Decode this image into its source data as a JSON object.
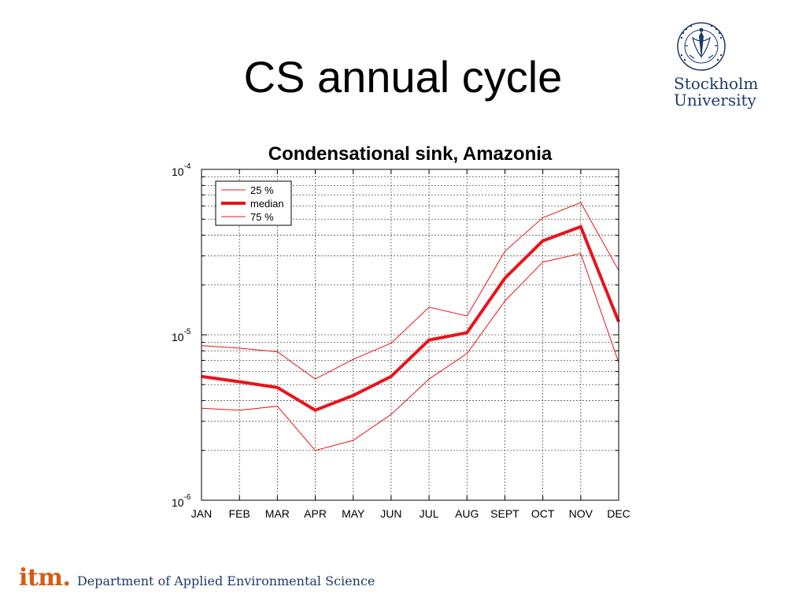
{
  "slide": {
    "title": "CS annual cycle"
  },
  "logo": {
    "line1": "Stockholm",
    "line2": "University",
    "seal_text": "UNIVERSITET STOCKHOLMS",
    "seal_icon": "university-seal-icon"
  },
  "footer": {
    "brand": "itm",
    "department": "Department of Applied Environmental Science"
  },
  "colors": {
    "series": "#e8141a",
    "logo_blue": "#1e3a6b",
    "brand_orange": "#d65b10"
  },
  "chart_data": {
    "type": "line",
    "title": "Condensational sink, Amazonia",
    "xlabel": "",
    "ylabel": "",
    "yscale": "log",
    "ylim": [
      1e-06,
      0.0001
    ],
    "y_tick_labels": [
      {
        "value": 0.0001,
        "base": "10",
        "exp": "-4"
      },
      {
        "value": 1e-05,
        "base": "10",
        "exp": "-5"
      },
      {
        "value": 1e-06,
        "base": "10",
        "exp": "-6"
      }
    ],
    "grid": true,
    "legend_position": "top-left",
    "categories": [
      "JAN",
      "FEB",
      "MAR",
      "APR",
      "MAY",
      "JUN",
      "JUL",
      "AUG",
      "SEPT",
      "OCT",
      "NOV",
      "DEC"
    ],
    "series": [
      {
        "name": "25 %",
        "style": "thin",
        "values": [
          3.6e-06,
          3.5e-06,
          3.7e-06,
          2e-06,
          2.3e-06,
          3.3e-06,
          5.4e-06,
          7.7e-06,
          1.6e-05,
          2.75e-05,
          3.1e-05,
          6.8e-06
        ]
      },
      {
        "name": "median",
        "style": "thick",
        "values": [
          5.6e-06,
          5.2e-06,
          4.8e-06,
          3.5e-06,
          4.3e-06,
          5.6e-06,
          9.3e-06,
          1.03e-05,
          2.2e-05,
          3.7e-05,
          4.5e-05,
          1.2e-05
        ]
      },
      {
        "name": "75 %",
        "style": "thin",
        "values": [
          8.6e-06,
          8.3e-06,
          7.9e-06,
          5.4e-06,
          7.1e-06,
          8.9e-06,
          1.47e-05,
          1.3e-05,
          3.2e-05,
          5.1e-05,
          6.3e-05,
          2.45e-05
        ]
      }
    ]
  }
}
